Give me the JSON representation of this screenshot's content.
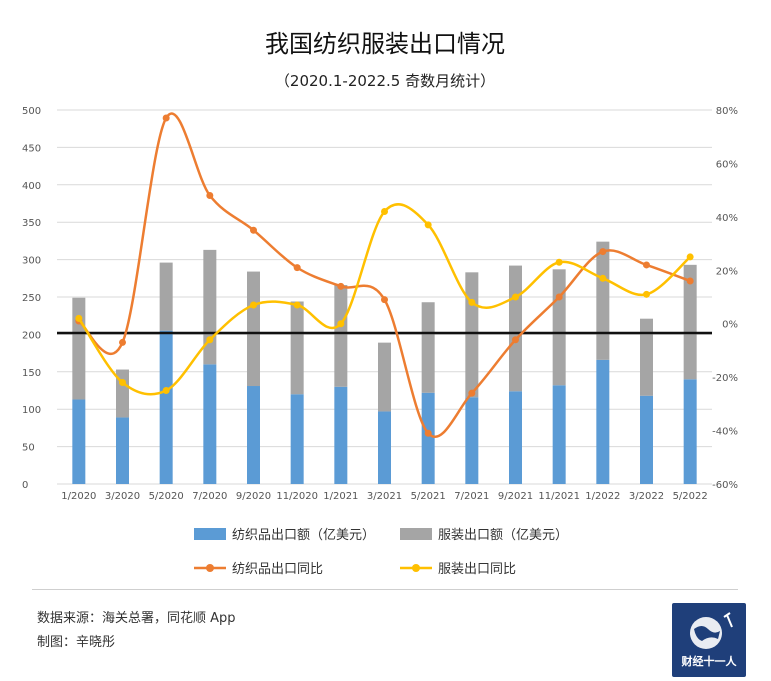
{
  "header": {
    "title": "我国纺织服装出口情况",
    "subtitle": "（2020.1-2022.5 奇数月统计）"
  },
  "footer": {
    "source": "数据来源：海关总署，同花顺 App",
    "author": "制图：辛晓彤",
    "logo_text": "财经十一人"
  },
  "colors": {
    "textile_bar": "#5b9bd5",
    "apparel_bar": "#a5a5a5",
    "textile_line": "#ed7d31",
    "apparel_line": "#ffc000"
  },
  "chart_data": {
    "type": "bar",
    "categories": [
      "1/2020",
      "3/2020",
      "5/2020",
      "7/2020",
      "9/2020",
      "11/2020",
      "1/2021",
      "3/2021",
      "5/2021",
      "7/2021",
      "9/2021",
      "11/2021",
      "1/2022",
      "3/2022",
      "5/2022"
    ],
    "series": [
      {
        "name": "纺织品出口额（亿美元）",
        "kind": "bar",
        "axis": "left",
        "stacked": true,
        "values": [
          113,
          89,
          205,
          160,
          131,
          120,
          130,
          97,
          122,
          116,
          124,
          132,
          166,
          118,
          140
        ]
      },
      {
        "name": "服装出口额（亿美元）",
        "kind": "bar",
        "axis": "left",
        "stacked": true,
        "values": [
          136,
          64,
          91,
          153,
          153,
          124,
          136,
          92,
          121,
          167,
          168,
          155,
          158,
          103,
          153
        ]
      },
      {
        "name": "纺织品出口同比",
        "kind": "line",
        "axis": "right",
        "values": [
          0.01,
          -0.07,
          0.77,
          0.48,
          0.35,
          0.21,
          0.14,
          0.09,
          -0.41,
          -0.26,
          -0.06,
          0.1,
          0.27,
          0.22,
          0.16
        ]
      },
      {
        "name": "服装出口同比",
        "kind": "line",
        "axis": "right",
        "values": [
          0.02,
          -0.22,
          -0.25,
          -0.06,
          0.07,
          0.07,
          0.0,
          0.42,
          0.37,
          0.08,
          0.1,
          0.23,
          0.17,
          0.11,
          0.25
        ]
      }
    ],
    "y_left": {
      "min": 0,
      "max": 500,
      "ticks": [
        "0",
        "50",
        "100",
        "150",
        "200",
        "250",
        "300",
        "350",
        "400",
        "450",
        "500"
      ]
    },
    "y_right": {
      "min": -0.6,
      "max": 0.8,
      "ticks": [
        "-60%",
        "-40%",
        "-20%",
        "0%",
        "20%",
        "40%",
        "60%",
        "80%"
      ]
    },
    "grid": true,
    "legend_position": "bottom"
  }
}
